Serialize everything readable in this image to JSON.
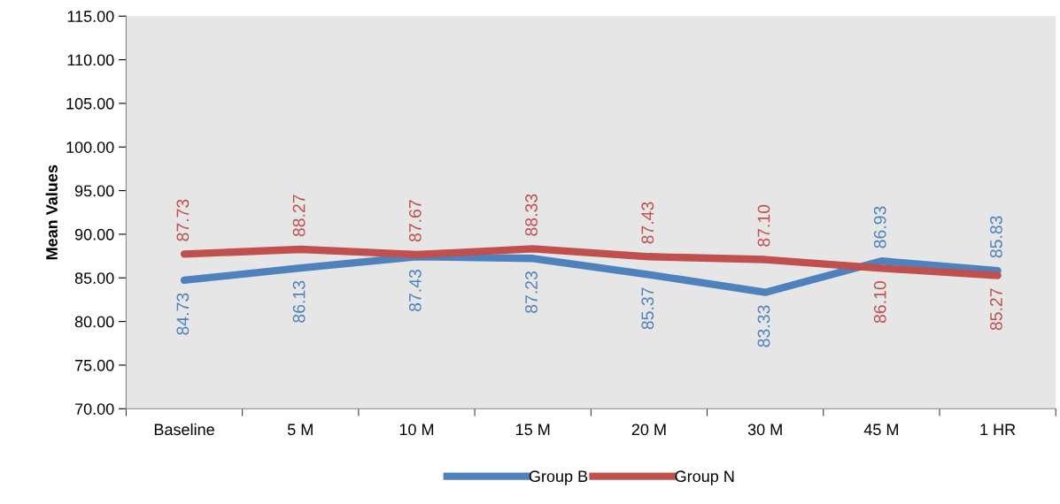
{
  "chart_data": {
    "type": "line",
    "ylabel": "Mean Values",
    "categories": [
      "Baseline",
      "5 M",
      "10 M",
      "15 M",
      "20 M",
      "30 M",
      "45 M",
      "1 HR"
    ],
    "series": [
      {
        "name": "Group B",
        "color": "#4f81bd",
        "values": [
          84.73,
          86.13,
          87.43,
          87.23,
          85.37,
          83.33,
          86.93,
          85.83
        ],
        "value_labels": [
          "84.73",
          "86.13",
          "87.43",
          "87.23",
          "85.37",
          "83.33",
          "86.93",
          "85.83"
        ]
      },
      {
        "name": "Group N",
        "color": "#c0504d",
        "values": [
          87.73,
          88.27,
          87.67,
          88.33,
          87.43,
          87.1,
          86.1,
          85.27
        ],
        "value_labels": [
          "87.73",
          "88.27",
          "87.67",
          "88.33",
          "87.43",
          "87.10",
          "86.10",
          "85.27"
        ]
      }
    ],
    "ylim": [
      70,
      115
    ],
    "yticks": [
      {
        "value": 70,
        "label": "70.00"
      },
      {
        "value": 75,
        "label": "75.00"
      },
      {
        "value": 80,
        "label": "80.00"
      },
      {
        "value": 85,
        "label": "85.00"
      },
      {
        "value": 90,
        "label": "90.00"
      },
      {
        "value": 95,
        "label": "95.00"
      },
      {
        "value": 100,
        "label": "100.00"
      },
      {
        "value": 105,
        "label": "105.00"
      },
      {
        "value": 110,
        "label": "110.00"
      },
      {
        "value": 115,
        "label": "115.00"
      }
    ],
    "grid": false,
    "legend": "bottom",
    "marker": "none",
    "line_style": "solid"
  }
}
